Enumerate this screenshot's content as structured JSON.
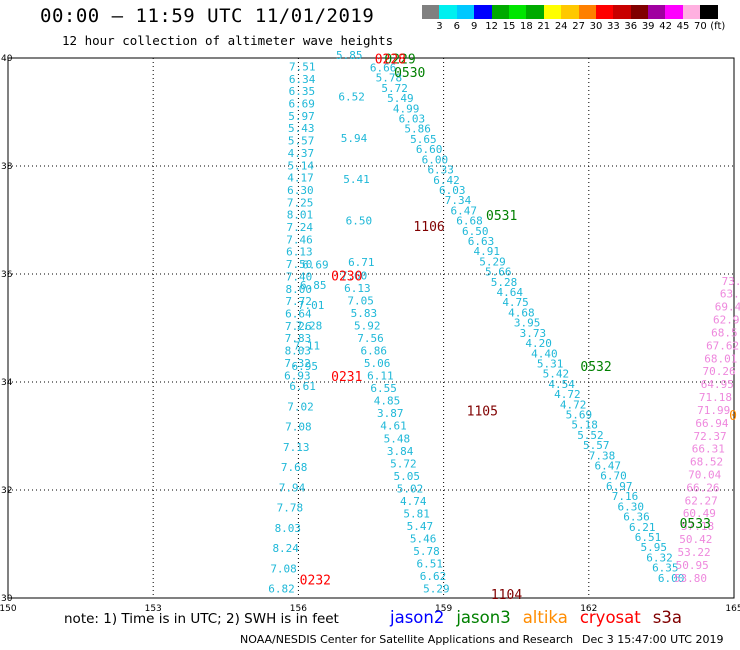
{
  "header": {
    "title": "00:00 – 11:59 UTC 11/01/2019",
    "subtitle": "12 hour collection of altimeter wave heights"
  },
  "legend": {
    "colors": [
      "#808080",
      "#00f0f0",
      "#00c8ff",
      "#0000ff",
      "#00aa00",
      "#00e600",
      "#00aa00",
      "#ffff00",
      "#ffc800",
      "#ff8000",
      "#ff0000",
      "#c80000",
      "#800000",
      "#a000a0",
      "#ff00ff",
      "#ffb0e0",
      "#000000"
    ],
    "labels": [
      "3",
      "6",
      "9",
      "12",
      "15",
      "18",
      "21",
      "24",
      "27",
      "30",
      "33",
      "36",
      "39",
      "42",
      "45",
      "70",
      "(ft)"
    ]
  },
  "map": {
    "lon_ticks": [
      "150",
      "153",
      "156",
      "159",
      "162",
      "165"
    ],
    "lat_ticks": [
      "40",
      "38",
      "36",
      "34",
      "32",
      "30"
    ],
    "lon_range": [
      150,
      165
    ],
    "lat_range": [
      30,
      40
    ]
  },
  "tracks": [
    {
      "name": "track-a",
      "color": "#1fb8d8",
      "lon_start": 156.08,
      "lat_start": 39.77,
      "lon_end": 155.98,
      "lat_end": 34.05,
      "values": [
        "7.51",
        "6.34",
        "6.35",
        "6.69",
        "5.97",
        "5.43",
        "5.57",
        "4.37",
        "5.14",
        "4.17",
        "6.30",
        "7.25",
        "8.01",
        "7.24",
        "7.46",
        "6.13",
        "7.50",
        "7.40",
        "8.00",
        "7.72",
        "6.64",
        "7.26",
        "7.83",
        "8.03",
        "7.32",
        "6.93"
      ]
    },
    {
      "name": "track-b",
      "color": "#1fb8d8",
      "lon_start": 156.35,
      "lat_start": 36.1,
      "lon_end": 155.65,
      "lat_end": 30.1,
      "values": [
        "6.69",
        "6.85",
        "7.01",
        "7.28",
        "7.11",
        "6.95",
        "6.61",
        "7.02",
        "7.08",
        "7.13",
        "7.68",
        "7.94",
        "7.78",
        "8.03",
        "8.24",
        "7.08",
        "6.82"
      ]
    },
    {
      "name": "track-c",
      "color": "#1fb8d8",
      "lon_start": 157.05,
      "lat_start": 39.98,
      "lon_end": 157.3,
      "lat_end": 36.15,
      "values": [
        "5.85",
        "6.52",
        "5.94",
        "5.41",
        "6.50",
        "6.71"
      ]
    },
    {
      "name": "track-d",
      "color": "#1fb8d8",
      "lon_start": 157.15,
      "lat_start": 35.9,
      "lon_end": 158.85,
      "lat_end": 30.1,
      "values": [
        "7.60",
        "6.13",
        "7.05",
        "5.83",
        "5.92",
        "7.56",
        "6.86",
        "5.06",
        "6.11",
        "6.55",
        "4.85",
        "3.87",
        "4.61",
        "5.48",
        "3.84",
        "5.72",
        "5.05",
        "5.02",
        "4.74",
        "5.81",
        "5.47",
        "5.46",
        "5.78",
        "6.51",
        "6.62",
        "5.29"
      ]
    },
    {
      "name": "track-e",
      "color": "#1fb8d8",
      "lon_start": 157.75,
      "lat_start": 39.75,
      "lon_end": 163.7,
      "lat_end": 30.3,
      "values": [
        "6.66",
        "5.78",
        "5.72",
        "5.49",
        "4.99",
        "6.03",
        "5.86",
        "5.65",
        "6.60",
        "6.00",
        "6.33",
        "6.42",
        "6.03",
        "7.34",
        "6.47",
        "6.68",
        "6.50",
        "6.63",
        "4.91",
        "5.29",
        "5.66",
        "5.28",
        "4.64",
        "4.75",
        "4.68",
        "3.95",
        "3.73",
        "4.20",
        "4.40",
        "5.31",
        "5.42",
        "4.54",
        "4.72",
        "4.72",
        "5.69",
        "5.18",
        "5.52",
        "5.57",
        "7.38",
        "6.47",
        "6.70",
        "6.97",
        "7.16",
        "6.30",
        "6.36",
        "6.21",
        "6.51",
        "5.95",
        "6.32",
        "6.35",
        "6.00"
      ]
    },
    {
      "name": "track-f",
      "color": "#ee88dd",
      "lon_start": 164.95,
      "lat_start": 35.8,
      "lon_end": 164.1,
      "lat_end": 30.3,
      "values": [
        "73.",
        "63.",
        "69.4",
        "62.9",
        "68.5",
        "67.62",
        "68.01",
        "70.26",
        "64.95",
        "71.18",
        "71.99",
        "66.94",
        "72.37",
        "66.31",
        "68.52",
        "70.04",
        "66.26",
        "62.27",
        "60.49",
        "57.18",
        "50.42",
        "53.22",
        "50.95",
        "53.80"
      ]
    }
  ],
  "pass_labels": [
    {
      "text": "0229",
      "color": "#008000",
      "lon": 158.1,
      "lat": 39.9
    },
    {
      "text": "0228",
      "color": "#ff0000",
      "lon": 157.9,
      "lat": 39.9
    },
    {
      "text": "0530",
      "color": "#008000",
      "lon": 158.3,
      "lat": 39.65
    },
    {
      "text": "1106",
      "color": "#800000",
      "lon": 158.7,
      "lat": 36.8
    },
    {
      "text": "0531",
      "color": "#008000",
      "lon": 160.2,
      "lat": 37.0
    },
    {
      "text": "0230",
      "color": "#ff0000",
      "lon": 157.0,
      "lat": 35.88
    },
    {
      "text": "0231",
      "color": "#ff0000",
      "lon": 157.0,
      "lat": 34.02
    },
    {
      "text": "0532",
      "color": "#008000",
      "lon": 162.15,
      "lat": 34.2
    },
    {
      "text": "1105",
      "color": "#800000",
      "lon": 159.8,
      "lat": 33.38
    },
    {
      "text": "0533",
      "color": "#008000",
      "lon": 164.2,
      "lat": 31.3
    },
    {
      "text": "0232",
      "color": "#ff0000",
      "lon": 156.35,
      "lat": 30.25
    },
    {
      "text": "1104",
      "color": "#800000",
      "lon": 160.3,
      "lat": 29.98
    },
    {
      "text": "0",
      "color": "#ff8c00",
      "lon": 164.98,
      "lat": 33.3
    }
  ],
  "footer": {
    "note": "note:  1) Time is in UTC;  2) SWH is in feet",
    "satellites": [
      {
        "name": "jason2",
        "color": "#0000ff"
      },
      {
        "name": "jason3",
        "color": "#008000"
      },
      {
        "name": "altika",
        "color": "#ff8c00"
      },
      {
        "name": "cryosat",
        "color": "#ff0000"
      },
      {
        "name": "s3a",
        "color": "#800000"
      }
    ],
    "credit": "NOAA/NESDIS Center for Satellite Applications and Research",
    "timestamp": "Dec  3 15:47:00 UTC 2019"
  }
}
